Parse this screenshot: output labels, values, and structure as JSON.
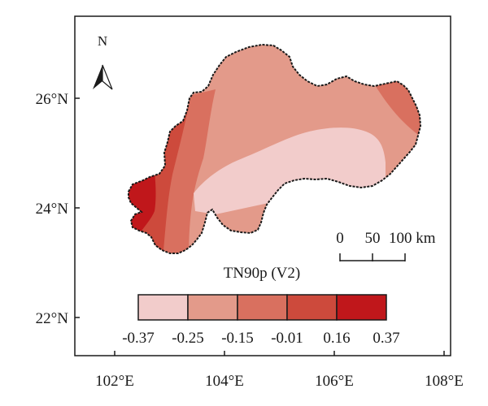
{
  "map": {
    "lat_labels": [
      "26°N",
      "24°N",
      "22°N"
    ],
    "lon_labels": [
      "102°E",
      "104°E",
      "106°E",
      "108°E"
    ],
    "north_label": "N",
    "scale_bar": {
      "labels": [
        "0",
        "50",
        "100 km"
      ]
    },
    "legend": {
      "title": "TN90p (V2)",
      "colors": [
        "#f2cccb",
        "#e39a8a",
        "#d9705f",
        "#cd4a3c",
        "#c0171b"
      ],
      "breaks": [
        "-0.37",
        "-0.25",
        "-0.15",
        "-0.01",
        "0.16",
        "0.37"
      ]
    },
    "region_colors": {
      "lightest": "#f2cccb",
      "light": "#e39a8a",
      "medium": "#d9705f",
      "dark": "#cd4a3c",
      "darkest": "#c0171b",
      "border": "#1a1a1a"
    }
  }
}
